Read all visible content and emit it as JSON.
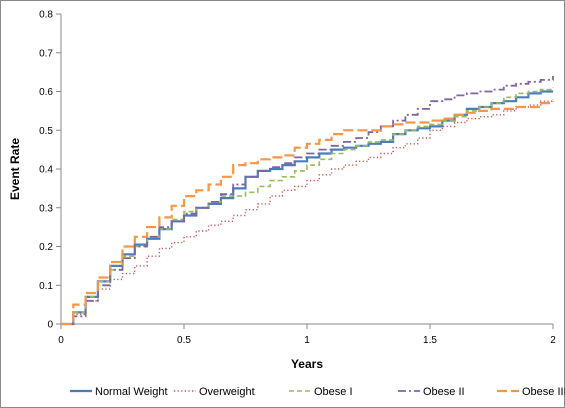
{
  "chart_data": {
    "type": "line",
    "title": "",
    "xlabel": "Years",
    "ylabel": "Event Rate",
    "xlim": [
      0,
      2
    ],
    "ylim": [
      0,
      0.8
    ],
    "x_ticks": [
      0,
      0.5,
      1,
      1.5,
      2
    ],
    "x_tick_labels": [
      "0",
      "0.5",
      "1",
      "1.5",
      "2"
    ],
    "y_ticks": [
      0,
      0.1,
      0.2,
      0.3,
      0.4,
      0.5,
      0.6,
      0.7,
      0.8
    ],
    "y_tick_labels": [
      "0",
      "0.1",
      "0.2",
      "0.3",
      "0.4",
      "0.5",
      "0.6",
      "0.7",
      "0.8"
    ],
    "grid": false,
    "legend_position": "bottom",
    "series": [
      {
        "name": "Normal Weight",
        "color": "#4a7ebb",
        "dash": "solid",
        "points": [
          [
            0,
            0
          ],
          [
            0.05,
            0.03
          ],
          [
            0.1,
            0.07
          ],
          [
            0.15,
            0.11
          ],
          [
            0.2,
            0.15
          ],
          [
            0.25,
            0.18
          ],
          [
            0.3,
            0.205
          ],
          [
            0.35,
            0.22
          ],
          [
            0.4,
            0.245
          ],
          [
            0.45,
            0.265
          ],
          [
            0.5,
            0.28
          ],
          [
            0.55,
            0.3
          ],
          [
            0.6,
            0.31
          ],
          [
            0.65,
            0.325
          ],
          [
            0.7,
            0.35
          ],
          [
            0.75,
            0.38
          ],
          [
            0.8,
            0.395
          ],
          [
            0.85,
            0.4
          ],
          [
            0.9,
            0.41
          ],
          [
            0.95,
            0.42
          ],
          [
            1.0,
            0.43
          ],
          [
            1.05,
            0.44
          ],
          [
            1.1,
            0.45
          ],
          [
            1.15,
            0.455
          ],
          [
            1.2,
            0.46
          ],
          [
            1.25,
            0.465
          ],
          [
            1.3,
            0.47
          ],
          [
            1.35,
            0.49
          ],
          [
            1.4,
            0.5
          ],
          [
            1.45,
            0.505
          ],
          [
            1.5,
            0.51
          ],
          [
            1.55,
            0.525
          ],
          [
            1.6,
            0.54
          ],
          [
            1.65,
            0.555
          ],
          [
            1.7,
            0.56
          ],
          [
            1.75,
            0.57
          ],
          [
            1.8,
            0.575
          ],
          [
            1.85,
            0.585
          ],
          [
            1.9,
            0.595
          ],
          [
            1.95,
            0.6
          ],
          [
            2.0,
            0.6
          ]
        ]
      },
      {
        "name": "Overweight",
        "color": "#c0504d",
        "dash": "dotted",
        "points": [
          [
            0,
            0
          ],
          [
            0.05,
            0.025
          ],
          [
            0.1,
            0.06
          ],
          [
            0.15,
            0.09
          ],
          [
            0.2,
            0.115
          ],
          [
            0.25,
            0.13
          ],
          [
            0.3,
            0.15
          ],
          [
            0.35,
            0.175
          ],
          [
            0.4,
            0.195
          ],
          [
            0.45,
            0.21
          ],
          [
            0.5,
            0.225
          ],
          [
            0.55,
            0.24
          ],
          [
            0.6,
            0.255
          ],
          [
            0.65,
            0.265
          ],
          [
            0.7,
            0.28
          ],
          [
            0.75,
            0.295
          ],
          [
            0.8,
            0.31
          ],
          [
            0.85,
            0.33
          ],
          [
            0.9,
            0.345
          ],
          [
            0.95,
            0.355
          ],
          [
            1.0,
            0.37
          ],
          [
            1.05,
            0.385
          ],
          [
            1.1,
            0.4
          ],
          [
            1.15,
            0.41
          ],
          [
            1.2,
            0.42
          ],
          [
            1.25,
            0.43
          ],
          [
            1.3,
            0.44
          ],
          [
            1.35,
            0.455
          ],
          [
            1.4,
            0.465
          ],
          [
            1.45,
            0.48
          ],
          [
            1.5,
            0.5
          ],
          [
            1.55,
            0.51
          ],
          [
            1.6,
            0.52
          ],
          [
            1.65,
            0.53
          ],
          [
            1.7,
            0.535
          ],
          [
            1.75,
            0.54
          ],
          [
            1.8,
            0.55
          ],
          [
            1.85,
            0.56
          ],
          [
            1.9,
            0.565
          ],
          [
            1.95,
            0.575
          ],
          [
            2.0,
            0.58
          ]
        ]
      },
      {
        "name": "Obese I",
        "color": "#9bbb59",
        "dash": "dashed",
        "points": [
          [
            0,
            0
          ],
          [
            0.05,
            0.03
          ],
          [
            0.1,
            0.07
          ],
          [
            0.15,
            0.11
          ],
          [
            0.2,
            0.14
          ],
          [
            0.25,
            0.175
          ],
          [
            0.3,
            0.2
          ],
          [
            0.35,
            0.225
          ],
          [
            0.4,
            0.245
          ],
          [
            0.45,
            0.27
          ],
          [
            0.5,
            0.29
          ],
          [
            0.55,
            0.3
          ],
          [
            0.6,
            0.315
          ],
          [
            0.65,
            0.33
          ],
          [
            0.7,
            0.33
          ],
          [
            0.75,
            0.34
          ],
          [
            0.8,
            0.355
          ],
          [
            0.85,
            0.37
          ],
          [
            0.9,
            0.38
          ],
          [
            0.95,
            0.395
          ],
          [
            1.0,
            0.41
          ],
          [
            1.05,
            0.425
          ],
          [
            1.1,
            0.44
          ],
          [
            1.15,
            0.45
          ],
          [
            1.2,
            0.46
          ],
          [
            1.25,
            0.47
          ],
          [
            1.3,
            0.475
          ],
          [
            1.35,
            0.49
          ],
          [
            1.4,
            0.5
          ],
          [
            1.45,
            0.51
          ],
          [
            1.5,
            0.515
          ],
          [
            1.55,
            0.525
          ],
          [
            1.6,
            0.535
          ],
          [
            1.65,
            0.55
          ],
          [
            1.7,
            0.56
          ],
          [
            1.75,
            0.57
          ],
          [
            1.8,
            0.585
          ],
          [
            1.85,
            0.595
          ],
          [
            1.9,
            0.6
          ],
          [
            1.95,
            0.605
          ],
          [
            2.0,
            0.61
          ]
        ]
      },
      {
        "name": "Obese II",
        "color": "#8064a2",
        "dash": "dashdot",
        "points": [
          [
            0,
            0
          ],
          [
            0.05,
            0.02
          ],
          [
            0.1,
            0.06
          ],
          [
            0.15,
            0.1
          ],
          [
            0.2,
            0.14
          ],
          [
            0.25,
            0.17
          ],
          [
            0.3,
            0.2
          ],
          [
            0.35,
            0.225
          ],
          [
            0.4,
            0.25
          ],
          [
            0.45,
            0.265
          ],
          [
            0.5,
            0.285
          ],
          [
            0.55,
            0.3
          ],
          [
            0.6,
            0.315
          ],
          [
            0.65,
            0.335
          ],
          [
            0.7,
            0.36
          ],
          [
            0.75,
            0.38
          ],
          [
            0.8,
            0.395
          ],
          [
            0.85,
            0.405
          ],
          [
            0.9,
            0.415
          ],
          [
            0.95,
            0.43
          ],
          [
            1.0,
            0.44
          ],
          [
            1.05,
            0.45
          ],
          [
            1.1,
            0.46
          ],
          [
            1.15,
            0.47
          ],
          [
            1.2,
            0.48
          ],
          [
            1.25,
            0.495
          ],
          [
            1.3,
            0.51
          ],
          [
            1.35,
            0.525
          ],
          [
            1.4,
            0.54
          ],
          [
            1.45,
            0.555
          ],
          [
            1.5,
            0.575
          ],
          [
            1.55,
            0.58
          ],
          [
            1.6,
            0.59
          ],
          [
            1.65,
            0.595
          ],
          [
            1.7,
            0.6
          ],
          [
            1.75,
            0.605
          ],
          [
            1.8,
            0.615
          ],
          [
            1.85,
            0.62
          ],
          [
            1.9,
            0.625
          ],
          [
            1.95,
            0.63
          ],
          [
            2.0,
            0.64
          ]
        ]
      },
      {
        "name": "Obese III",
        "color": "#f79646",
        "dash": "longdash",
        "points": [
          [
            0,
            0
          ],
          [
            0.05,
            0.05
          ],
          [
            0.1,
            0.08
          ],
          [
            0.15,
            0.12
          ],
          [
            0.2,
            0.16
          ],
          [
            0.25,
            0.2
          ],
          [
            0.3,
            0.225
          ],
          [
            0.35,
            0.25
          ],
          [
            0.4,
            0.275
          ],
          [
            0.45,
            0.305
          ],
          [
            0.5,
            0.33
          ],
          [
            0.55,
            0.345
          ],
          [
            0.6,
            0.36
          ],
          [
            0.65,
            0.38
          ],
          [
            0.7,
            0.41
          ],
          [
            0.75,
            0.415
          ],
          [
            0.8,
            0.425
          ],
          [
            0.85,
            0.43
          ],
          [
            0.9,
            0.435
          ],
          [
            0.95,
            0.455
          ],
          [
            1.0,
            0.465
          ],
          [
            1.05,
            0.475
          ],
          [
            1.1,
            0.49
          ],
          [
            1.15,
            0.5
          ],
          [
            1.2,
            0.5
          ],
          [
            1.25,
            0.5
          ],
          [
            1.3,
            0.51
          ],
          [
            1.35,
            0.515
          ],
          [
            1.4,
            0.52
          ],
          [
            1.45,
            0.52
          ],
          [
            1.5,
            0.525
          ],
          [
            1.55,
            0.53
          ],
          [
            1.6,
            0.54
          ],
          [
            1.65,
            0.545
          ],
          [
            1.7,
            0.55
          ],
          [
            1.75,
            0.555
          ],
          [
            1.8,
            0.555
          ],
          [
            1.85,
            0.56
          ],
          [
            1.9,
            0.56
          ],
          [
            1.95,
            0.57
          ],
          [
            2.0,
            0.575
          ]
        ]
      }
    ]
  }
}
